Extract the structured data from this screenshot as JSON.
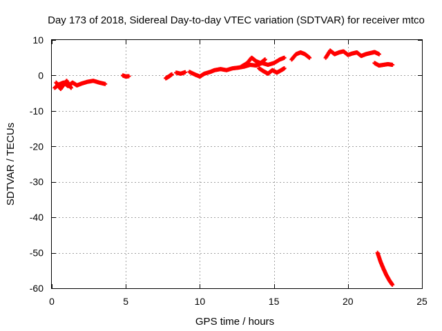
{
  "chart_data": {
    "type": "scatter",
    "title": "Day 173 of 2018, Sidereal Day-to-day VTEC variation (SDTVAR) for receiver mtco",
    "xlabel": "GPS time / hours",
    "ylabel": "SDTVAR / TECUs",
    "xlim": [
      0,
      25
    ],
    "ylim": [
      -60,
      10
    ],
    "xticks": [
      0,
      5,
      10,
      15,
      20,
      25
    ],
    "yticks": [
      10,
      0,
      -10,
      -20,
      -30,
      -40,
      -50,
      -60
    ],
    "xtick_labels": [
      "0",
      "5",
      "10",
      "15",
      "20",
      "25"
    ],
    "ytick_labels": [
      "10",
      "0",
      "-10",
      "-20",
      "-30",
      "-40",
      "-50",
      "-60"
    ],
    "grid": true,
    "marker": "plus",
    "color": "#ff0000",
    "series": [
      {
        "name": "SDTVAR",
        "segments": [
          {
            "x": [
              0.2,
              0.5,
              0.8,
              1.1,
              1.4,
              1.7,
              2.0,
              2.4,
              2.8,
              3.2,
              3.6
            ],
            "y": [
              -3.5,
              -2.5,
              -2.0,
              -3.0,
              -2.0,
              -2.8,
              -2.3,
              -1.8,
              -1.5,
              -2.0,
              -2.4
            ]
          },
          {
            "x": [
              0.3,
              0.6,
              1.0,
              1.3
            ],
            "y": [
              -2.0,
              -3.8,
              -1.5,
              -3.5
            ]
          },
          {
            "x": [
              4.8,
              5.0,
              5.2
            ],
            "y": [
              0.0,
              -0.3,
              -0.2
            ]
          },
          {
            "x": [
              7.7,
              7.9,
              8.1
            ],
            "y": [
              -0.8,
              -0.3,
              0.3
            ]
          },
          {
            "x": [
              8.4,
              8.7,
              9.0
            ],
            "y": [
              0.8,
              0.5,
              0.9
            ]
          },
          {
            "x": [
              9.3,
              9.7,
              10.0,
              10.3,
              10.7,
              11.0,
              11.4,
              11.8,
              12.2,
              12.6,
              13.0,
              13.4,
              13.8,
              14.2,
              14.6,
              15.0,
              15.4,
              15.7
            ],
            "y": [
              1.0,
              0.2,
              -0.3,
              0.5,
              1.0,
              1.5,
              1.8,
              1.5,
              2.0,
              2.2,
              2.5,
              3.0,
              2.8,
              3.5,
              3.0,
              3.5,
              4.5,
              5.0
            ]
          },
          {
            "x": [
              12.8,
              13.2,
              13.5,
              13.8,
              14.1,
              14.4
            ],
            "y": [
              2.5,
              3.5,
              5.0,
              4.0,
              3.5,
              4.5
            ]
          },
          {
            "x": [
              14.0,
              14.3,
              14.6,
              14.9,
              15.2,
              15.5,
              15.7
            ],
            "y": [
              2.0,
              1.2,
              0.5,
              1.5,
              0.8,
              1.5,
              2.0
            ]
          },
          {
            "x": [
              16.2,
              16.5,
              16.8,
              17.1,
              17.4
            ],
            "y": [
              4.5,
              6.0,
              6.5,
              6.0,
              5.0
            ]
          },
          {
            "x": [
              18.5,
              18.8,
              19.1,
              19.4,
              19.7,
              20.0,
              20.3,
              20.6,
              20.9,
              21.2,
              21.5,
              21.8,
              22.1
            ],
            "y": [
              5.0,
              7.0,
              6.0,
              6.5,
              6.8,
              5.8,
              6.2,
              6.5,
              5.5,
              6.0,
              6.3,
              6.6,
              6.0
            ]
          },
          {
            "x": [
              21.8,
              22.1,
              22.4,
              22.7,
              23.0
            ],
            "y": [
              3.5,
              2.8,
              3.0,
              3.2,
              3.0
            ]
          },
          {
            "x": [
              22.0,
              22.2,
              22.4,
              22.6,
              22.8,
              23.0
            ],
            "y": [
              -50.0,
              -52.5,
              -54.5,
              -56.3,
              -57.8,
              -59.0
            ]
          }
        ]
      }
    ]
  }
}
